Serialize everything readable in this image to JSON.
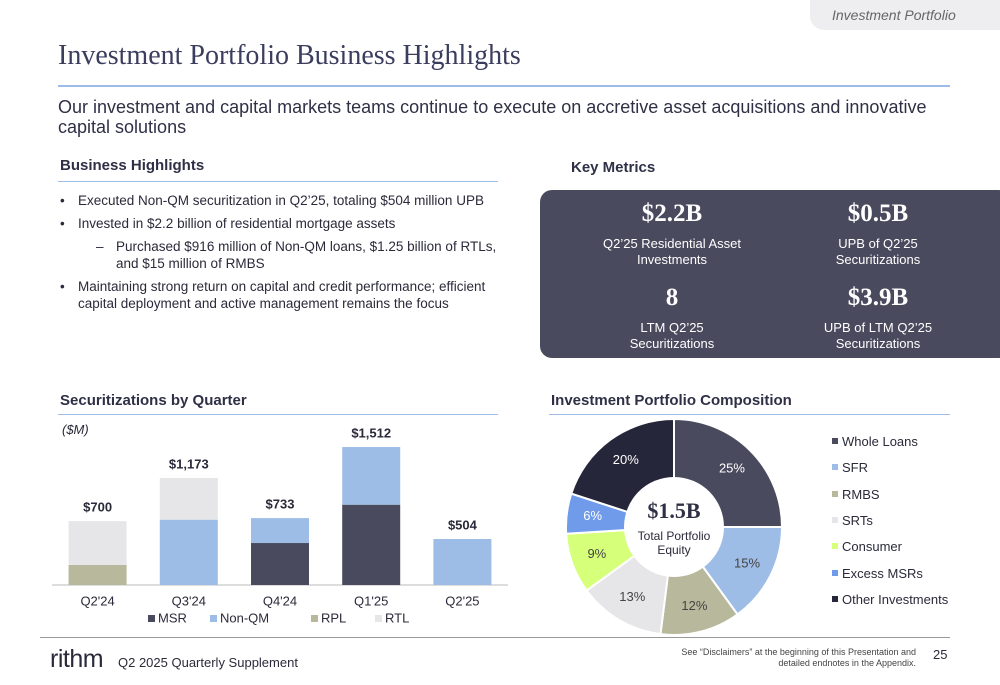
{
  "header": {
    "tag": "Investment Portfolio",
    "title": "Investment Portfolio Business Highlights",
    "subtitle": "Our investment and capital markets teams continue to execute on accretive asset acquisitions and innovative capital solutions"
  },
  "highlights": {
    "heading": "Business Highlights",
    "bullets": [
      {
        "text": "Executed Non-QM securitization in Q2’25, totaling $504 million UPB",
        "sub": []
      },
      {
        "text": "Invested in $2.2 billion of residential mortgage assets",
        "sub": [
          "Purchased $916 million of Non-QM loans, $1.25 billion of RTLs, and $15 million of RMBS"
        ]
      },
      {
        "text": "Maintaining strong return on capital and credit performance; efficient capital deployment and active management remains the focus",
        "sub": []
      }
    ]
  },
  "metrics": {
    "heading": "Key Metrics",
    "items": [
      {
        "value": "$2.2B",
        "label": "Q2’25 Residential Asset Investments"
      },
      {
        "value": "$0.5B",
        "label": "UPB of Q2’25 Securitizations"
      },
      {
        "value": "8",
        "label": "LTM Q2’25 Securitizations"
      },
      {
        "value": "$3.9B",
        "label": "UPB of LTM Q2’25 Securitizations"
      }
    ]
  },
  "chart_data": [
    {
      "type": "bar",
      "stacked": true,
      "title": "Securitizations by Quarter",
      "unit_label": "($M)",
      "categories": [
        "Q2'24",
        "Q3'24",
        "Q4'24",
        "Q1'25",
        "Q2'25"
      ],
      "series": [
        {
          "name": "MSR",
          "color": "#4a4a5e",
          "values": [
            0,
            0,
            460,
            880,
            0
          ]
        },
        {
          "name": "Non-QM",
          "color": "#9dbde6",
          "values": [
            0,
            716,
            273,
            632,
            504
          ]
        },
        {
          "name": "RPL",
          "color": "#b8b89c",
          "values": [
            220,
            0,
            0,
            0,
            0
          ]
        },
        {
          "name": "RTL",
          "color": "#e6e6e8",
          "values": [
            480,
            457,
            0,
            0,
            0
          ]
        }
      ],
      "totals": [
        700,
        1173,
        733,
        1512,
        504
      ],
      "total_labels": [
        "$700",
        "$1,173",
        "$733",
        "$1,512",
        "$504"
      ],
      "ylim": [
        0,
        1600
      ],
      "legend": "bottom"
    },
    {
      "type": "pie",
      "title": "Investment Portfolio Composition",
      "categories": [
        "Whole Loans",
        "SFR",
        "RMBS",
        "SRTs",
        "Consumer",
        "Excess MSRs",
        "Other Investments"
      ],
      "values": [
        25,
        15,
        12,
        13,
        9,
        6,
        20
      ],
      "value_labels": [
        "25%",
        "15%",
        "12%",
        "13%",
        "9%",
        "6%",
        "20%"
      ],
      "colors": [
        "#4a4a5e",
        "#9dbde6",
        "#b8b89c",
        "#e6e6e8",
        "#d6ff7a",
        "#6f9bea",
        "#26263a"
      ],
      "center_value": "$1.5B",
      "center_label": "Total Portfolio Equity",
      "legend": "right"
    }
  ],
  "footer": {
    "logo": "rithm",
    "text": "Q2 2025 Quarterly Supplement",
    "disclaimer": "See “Disclaimers” at the beginning of this Presentation and detailed endnotes in the Appendix.",
    "page": "25"
  }
}
